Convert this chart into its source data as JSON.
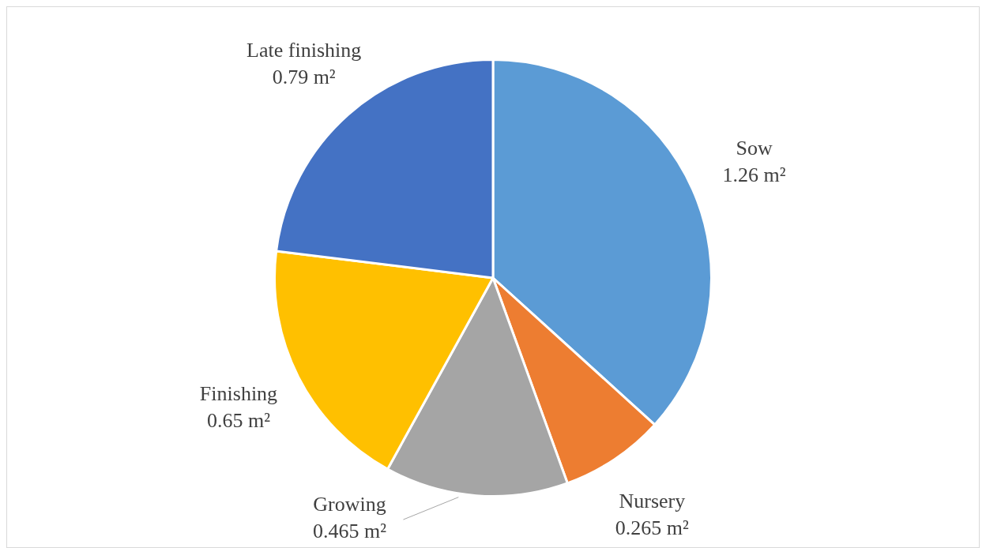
{
  "chart_data": {
    "type": "pie",
    "categories": [
      "Sow",
      "Nursery",
      "Growing",
      "Finishing",
      "Late finishing"
    ],
    "values": [
      1.26,
      0.265,
      0.465,
      0.65,
      0.79
    ],
    "colors": [
      "#5b9bd5",
      "#ed7d31",
      "#a5a5a5",
      "#ffc000",
      "#4472c4"
    ],
    "value_labels": [
      "1.26 m²",
      "0.265 m²",
      "0.465 m²",
      "0.65 m²",
      "0.79 m²"
    ],
    "legend": false
  }
}
